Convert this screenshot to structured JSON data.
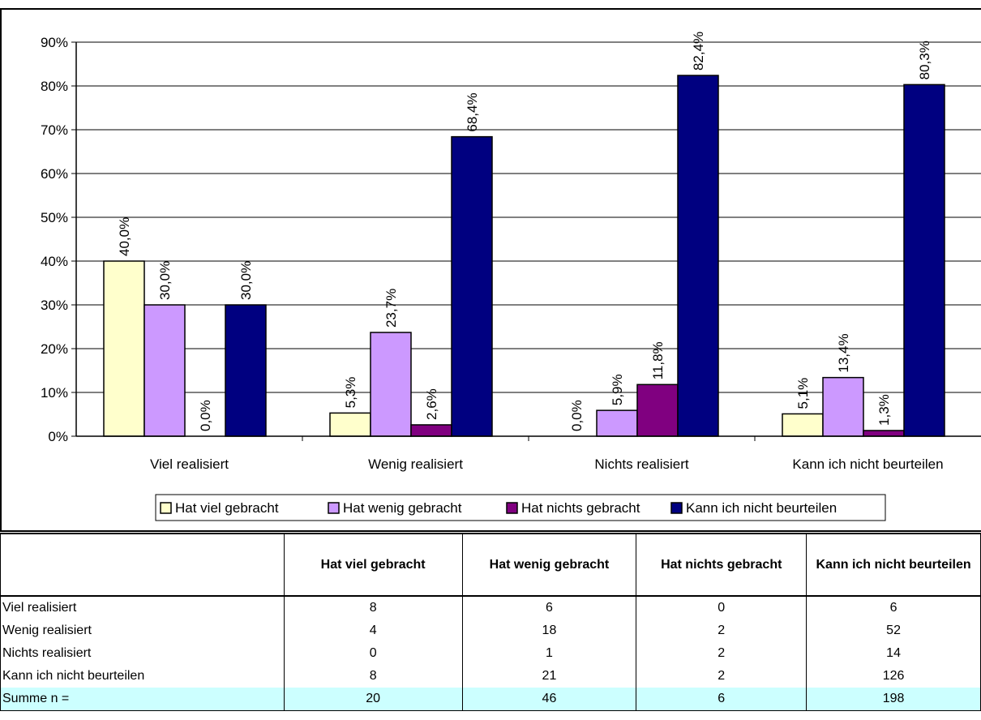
{
  "chart_data": {
    "type": "bar",
    "categories": [
      "Viel realisiert",
      "Wenig realisiert",
      "Nichts realisiert",
      "Kann ich nicht beurteilen"
    ],
    "series": [
      {
        "name": "Hat viel gebracht",
        "values": [
          40.0,
          5.3,
          0.0,
          5.1
        ],
        "labels": [
          "40,0%",
          "5,3%",
          "0,0%",
          "5,1%"
        ],
        "color": "#ffffcc"
      },
      {
        "name": "Hat wenig gebracht",
        "values": [
          30.0,
          23.7,
          5.9,
          13.4
        ],
        "labels": [
          "30,0%",
          "23,7%",
          "5,9%",
          "13,4%"
        ],
        "color": "#cc99ff"
      },
      {
        "name": "Hat nichts gebracht",
        "values": [
          0.0,
          2.6,
          11.8,
          1.3
        ],
        "labels": [
          "0,0%",
          "2,6%",
          "11,8%",
          "1,3%"
        ],
        "color": "#800080"
      },
      {
        "name": "Kann ich nicht beurteilen",
        "values": [
          30.0,
          68.4,
          82.4,
          80.3
        ],
        "labels": [
          "30,0%",
          "68,4%",
          "82,4%",
          "80,3%"
        ],
        "color": "#000080"
      }
    ],
    "yticks": [
      "0%",
      "10%",
      "20%",
      "30%",
      "40%",
      "50%",
      "60%",
      "70%",
      "80%",
      "90%"
    ],
    "ylim": [
      0,
      90
    ],
    "grid": true,
    "legend": "bottom"
  },
  "table": {
    "headers": [
      "",
      "Hat viel gebracht",
      "Hat wenig gebracht",
      "Hat nichts gebracht",
      "Kann ich nicht beurteilen"
    ],
    "rows": [
      {
        "label": "Viel realisiert",
        "values": [
          "8",
          "6",
          "0",
          "6"
        ]
      },
      {
        "label": "Wenig realisiert",
        "values": [
          "4",
          "18",
          "2",
          "52"
        ]
      },
      {
        "label": "Nichts realisiert",
        "values": [
          "0",
          "1",
          "2",
          "14"
        ]
      },
      {
        "label": "Kann ich nicht beurteilen",
        "values": [
          "8",
          "21",
          "2",
          "126"
        ]
      }
    ],
    "sum_row": {
      "label": "Summe n =",
      "values": [
        "20",
        "46",
        "6",
        "198"
      ]
    },
    "sum_color": "#ccffff"
  }
}
